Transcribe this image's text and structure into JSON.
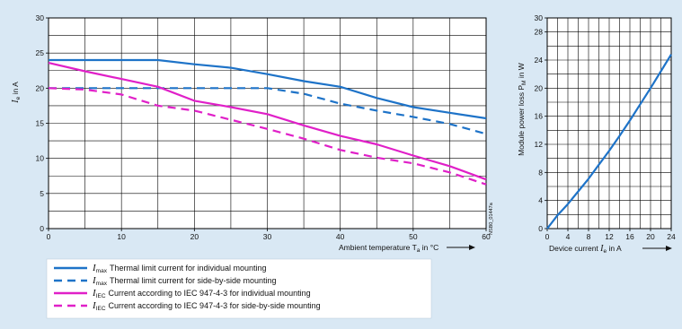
{
  "colors": {
    "background": "#d9e8f4",
    "plot_bg": "#ffffff",
    "grid": "#000000",
    "blue": "#1e73c8",
    "magenta": "#e020c8"
  },
  "chart_data": [
    {
      "type": "line",
      "title": "",
      "ylabel_sym": "I",
      "ylabel_sub": "e",
      "ylabel_rest": " in A",
      "xlabel_main": "Ambient temperature T",
      "xlabel_sub": "a",
      "xlabel_rest": " in °C",
      "xlim": [
        0,
        60
      ],
      "ylim": [
        0,
        30
      ],
      "xticks": [
        "0",
        "10",
        "20",
        "30",
        "40",
        "50",
        "60"
      ],
      "yticks": [
        "0",
        "5",
        "10",
        "15",
        "20",
        "25",
        "30"
      ],
      "grid": true,
      "side_note": "NSB0_01447a",
      "series": [
        {
          "sym": "I",
          "sub": "max",
          "name": "Thermal limit current for individual mounting",
          "color": "blue",
          "style": "solid",
          "x": [
            0,
            5,
            10,
            15,
            20,
            25,
            30,
            35,
            40,
            45,
            50,
            55,
            60
          ],
          "y": [
            24,
            24,
            24,
            24,
            23.4,
            22.9,
            22,
            21,
            20.2,
            18.6,
            17.3,
            16.5,
            15.7
          ]
        },
        {
          "sym": "I",
          "sub": "max",
          "name": "Thermal limit current for side-by-side mounting",
          "color": "blue",
          "style": "dashed",
          "x": [
            0,
            5,
            10,
            15,
            20,
            25,
            30,
            35,
            40,
            45,
            50,
            55,
            60
          ],
          "y": [
            20,
            20,
            20,
            20,
            20,
            20,
            20,
            19.2,
            17.8,
            16.8,
            15.9,
            14.9,
            13.5
          ]
        },
        {
          "sym": "I",
          "sub": "IEC",
          "name": "Current according to IEC 947-4-3 for individual mounting",
          "color": "magenta",
          "style": "solid",
          "x": [
            0,
            5,
            10,
            15,
            20,
            25,
            30,
            35,
            40,
            45,
            50,
            55,
            60
          ],
          "y": [
            23.6,
            22.4,
            21.3,
            20.2,
            18.2,
            17.3,
            16.3,
            14.7,
            13.2,
            12,
            10.4,
            8.9,
            7
          ]
        },
        {
          "sym": "I",
          "sub": "IEC",
          "name": "Current according to IEC 947-4-3 for side-by-side mounting",
          "color": "magenta",
          "style": "dashed",
          "x": [
            0,
            5,
            10,
            15,
            20,
            25,
            30,
            35,
            40,
            45,
            50,
            55,
            60
          ],
          "y": [
            20,
            19.8,
            19.1,
            17.5,
            16.8,
            15.5,
            14.2,
            12.8,
            11.2,
            10.1,
            9.3,
            8,
            6.3
          ]
        }
      ]
    },
    {
      "type": "line",
      "title": "",
      "ylabel_main": "Module power loss P",
      "ylabel_sub": "M",
      "ylabel_rest": " in W",
      "xlabel_main": "Device current ",
      "xlabel_sym": "I",
      "xlabel_sub": "e",
      "xlabel_rest": " in A",
      "xlim": [
        0,
        24
      ],
      "ylim": [
        0,
        30
      ],
      "xticks": [
        "0",
        "4",
        "8",
        "12",
        "16",
        "20",
        "24"
      ],
      "yticks": [
        "0",
        "4",
        "8",
        "12",
        "16",
        "20",
        "24",
        "28",
        "30"
      ],
      "grid": true,
      "series": [
        {
          "color": "blue",
          "style": "solid",
          "x": [
            0,
            2,
            4,
            6,
            8,
            10,
            12,
            14,
            16,
            18,
            20,
            22,
            24
          ],
          "y": [
            0,
            1.9,
            3.5,
            5.3,
            7.1,
            9.1,
            11.1,
            13.2,
            15.4,
            17.7,
            20,
            22.4,
            24.8
          ]
        }
      ]
    }
  ]
}
